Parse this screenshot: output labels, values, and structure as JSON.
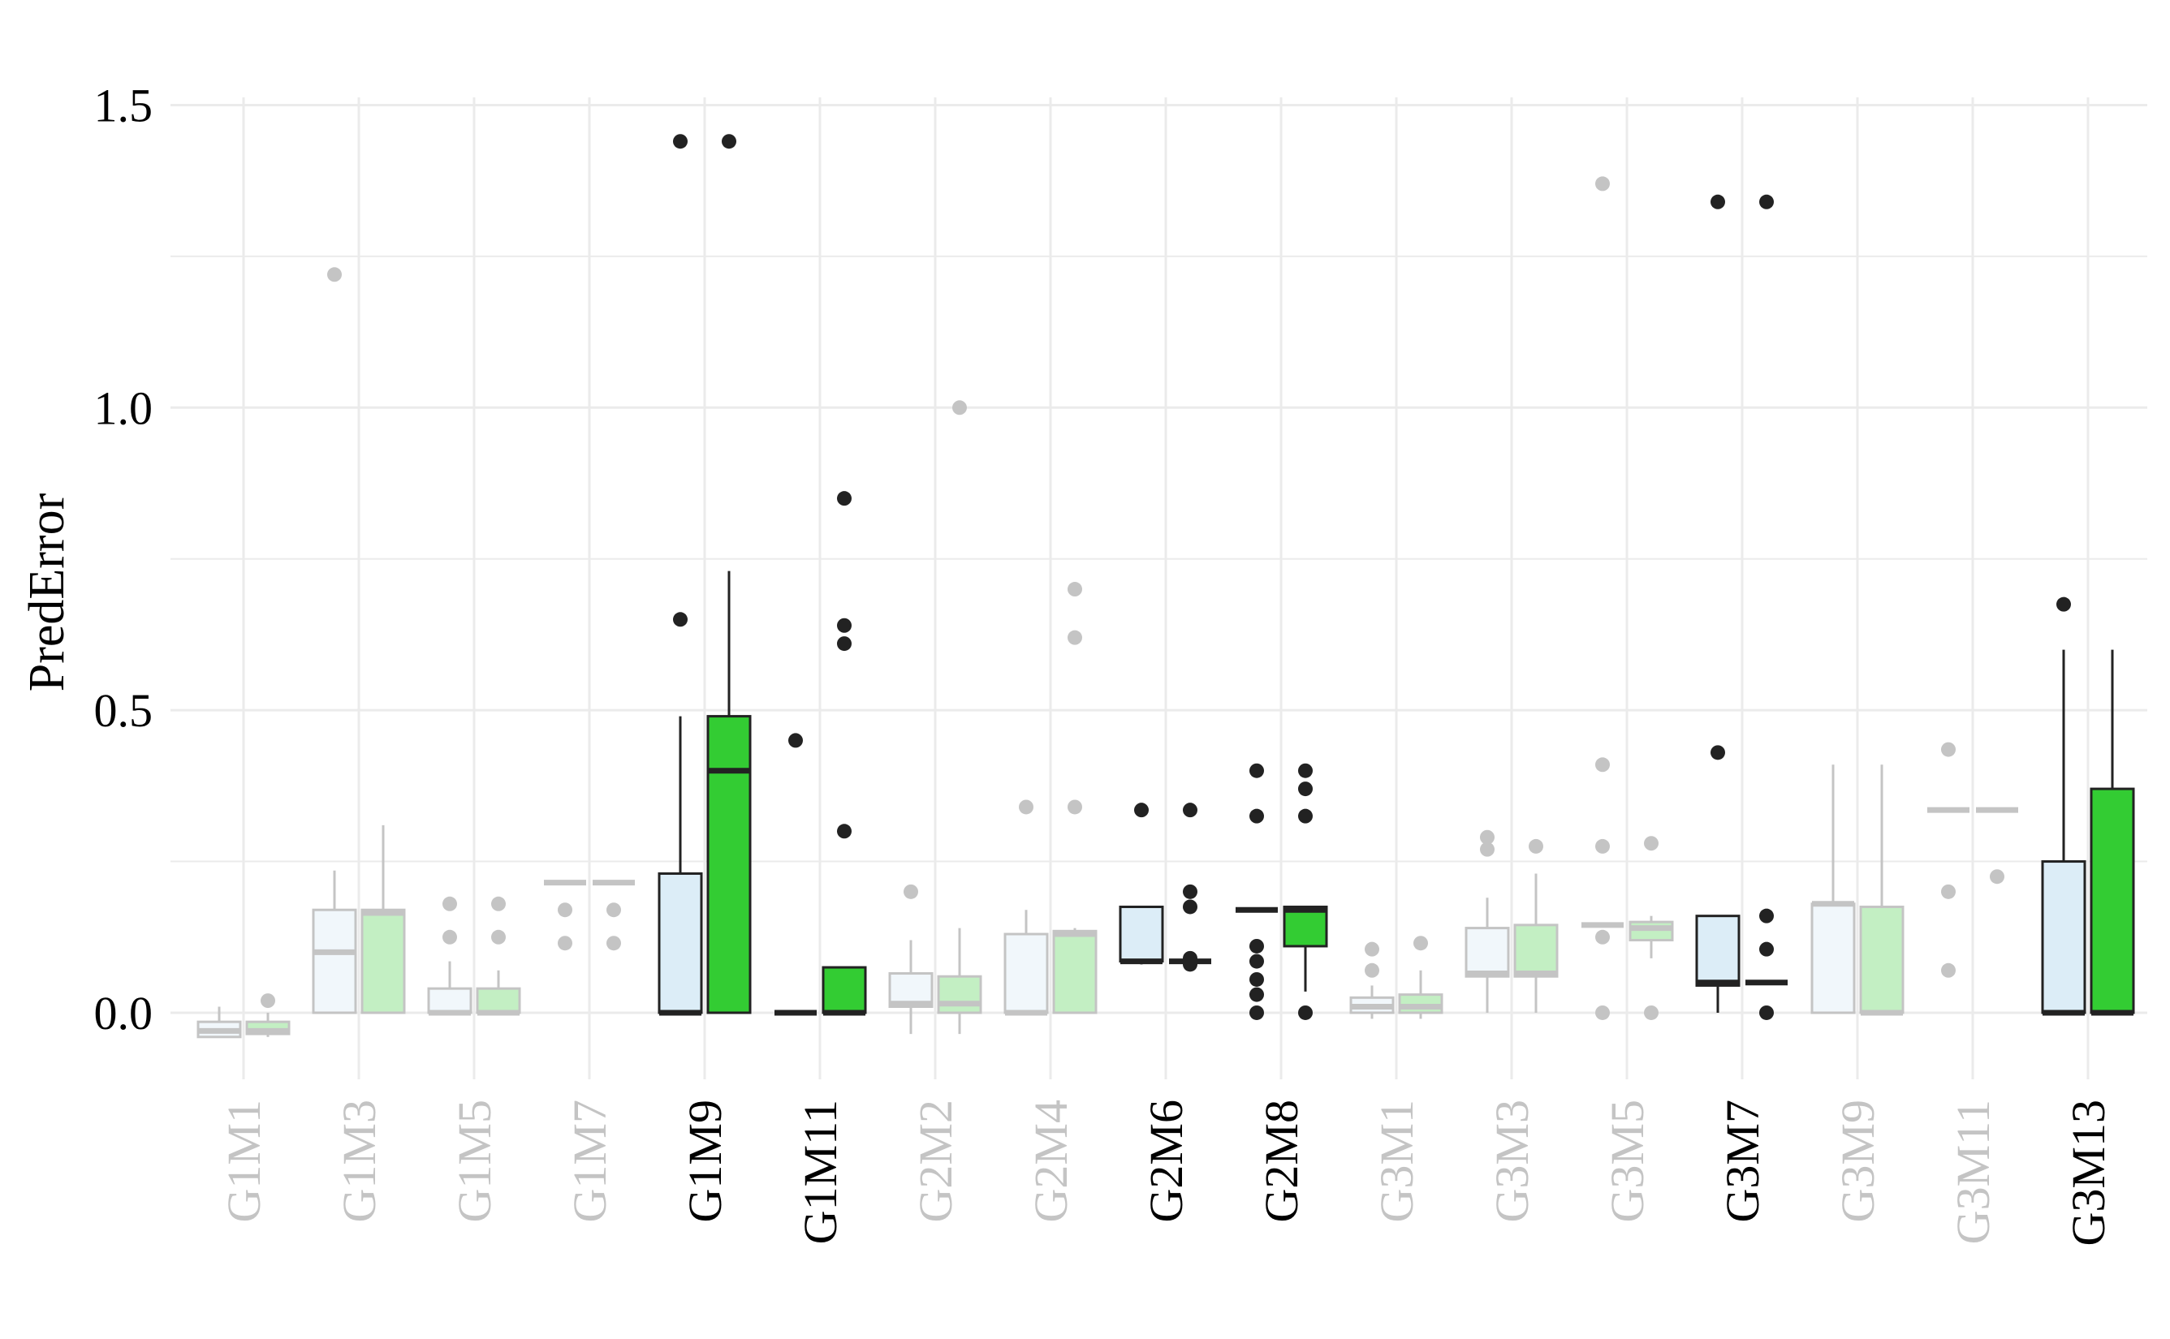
{
  "chart_data": {
    "type": "box",
    "title": "",
    "xlabel": "",
    "ylabel": "PredError",
    "ylim": [
      -0.11,
      1.62
    ],
    "yticks": [
      0.0,
      0.5,
      1.0,
      1.5
    ],
    "ytick_labels": [
      "0.0",
      "0.5",
      "1.0",
      "1.5"
    ],
    "grid": true,
    "legend": "none",
    "colors": {
      "blue_box": "#dcedf7",
      "green_box": "#33cc33",
      "blue_box_faded": "#f1f7fb",
      "green_box_faded": "#c3efc3",
      "dark": "#222222",
      "faded": "#c4c4c4",
      "grid": "#ebebeb"
    },
    "categories": [
      {
        "label": "G1M1",
        "highlight": false,
        "boxes": [
          {
            "series": "blue",
            "whislo": -0.04,
            "q1": -0.04,
            "med": -0.03,
            "q3": -0.015,
            "whishi": 0.01,
            "fliers": []
          },
          {
            "series": "green",
            "whislo": -0.04,
            "q1": -0.035,
            "med": -0.03,
            "q3": -0.015,
            "whishi": 0.0,
            "fliers": [
              0.02
            ]
          }
        ]
      },
      {
        "label": "G1M3",
        "highlight": false,
        "boxes": [
          {
            "series": "blue",
            "whislo": 0.0,
            "q1": 0.0,
            "med": 0.1,
            "q3": 0.17,
            "whishi": 0.235,
            "fliers": [
              1.22
            ]
          },
          {
            "series": "green",
            "whislo": 0.0,
            "q1": 0.0,
            "med": 0.165,
            "q3": 0.17,
            "whishi": 0.31,
            "fliers": []
          }
        ]
      },
      {
        "label": "G1M5",
        "highlight": false,
        "boxes": [
          {
            "series": "blue",
            "whislo": 0.0,
            "q1": 0.0,
            "med": 0.0,
            "q3": 0.04,
            "whishi": 0.085,
            "fliers": [
              0.125,
              0.18
            ]
          },
          {
            "series": "green",
            "whislo": 0.0,
            "q1": 0.0,
            "med": 0.0,
            "q3": 0.04,
            "whishi": 0.07,
            "fliers": [
              0.125,
              0.18
            ]
          }
        ]
      },
      {
        "label": "G1M7",
        "highlight": false,
        "boxes": [
          {
            "series": "blue",
            "whislo": 0.215,
            "q1": 0.215,
            "med": 0.215,
            "q3": 0.215,
            "whishi": 0.215,
            "fliers": [
              0.115,
              0.17
            ]
          },
          {
            "series": "green",
            "whislo": 0.215,
            "q1": 0.215,
            "med": 0.215,
            "q3": 0.215,
            "whishi": 0.215,
            "fliers": [
              0.115,
              0.17
            ]
          }
        ]
      },
      {
        "label": "G1M9",
        "highlight": true,
        "boxes": [
          {
            "series": "blue",
            "whislo": 0.0,
            "q1": 0.0,
            "med": 0.0,
            "q3": 0.23,
            "whishi": 0.49,
            "fliers": [
              0.65,
              1.44
            ]
          },
          {
            "series": "green",
            "whislo": 0.0,
            "q1": 0.0,
            "med": 0.4,
            "q3": 0.49,
            "whishi": 0.73,
            "fliers": [
              1.44
            ]
          }
        ]
      },
      {
        "label": "G1M11",
        "highlight": true,
        "boxes": [
          {
            "series": "blue",
            "whislo": 0.0,
            "q1": 0.0,
            "med": 0.0,
            "q3": 0.0,
            "whishi": 0.0,
            "fliers": [
              0.45
            ]
          },
          {
            "series": "green",
            "whislo": 0.0,
            "q1": 0.0,
            "med": 0.0,
            "q3": 0.075,
            "whishi": 0.075,
            "fliers": [
              0.3,
              0.61,
              0.64,
              0.85
            ]
          }
        ]
      },
      {
        "label": "G2M2",
        "highlight": false,
        "boxes": [
          {
            "series": "blue",
            "whislo": -0.035,
            "q1": 0.01,
            "med": 0.015,
            "q3": 0.065,
            "whishi": 0.12,
            "fliers": [
              0.2
            ]
          },
          {
            "series": "green",
            "whislo": -0.035,
            "q1": 0.0,
            "med": 0.015,
            "q3": 0.06,
            "whishi": 0.14,
            "fliers": [
              1.0
            ]
          }
        ]
      },
      {
        "label": "G2M4",
        "highlight": false,
        "boxes": [
          {
            "series": "blue",
            "whislo": 0.0,
            "q1": 0.0,
            "med": 0.0,
            "q3": 0.13,
            "whishi": 0.17,
            "fliers": [
              0.34
            ]
          },
          {
            "series": "green",
            "whislo": 0.0,
            "q1": 0.0,
            "med": 0.13,
            "q3": 0.135,
            "whishi": 0.14,
            "fliers": [
              0.34,
              0.62,
              0.7
            ]
          }
        ]
      },
      {
        "label": "G2M6",
        "highlight": true,
        "boxes": [
          {
            "series": "blue",
            "whislo": 0.08,
            "q1": 0.085,
            "med": 0.085,
            "q3": 0.175,
            "whishi": 0.175,
            "fliers": [
              0.335
            ]
          },
          {
            "series": "green",
            "whislo": 0.085,
            "q1": 0.085,
            "med": 0.085,
            "q3": 0.085,
            "whishi": 0.085,
            "fliers": [
              0.08,
              0.09,
              0.175,
              0.2,
              0.335
            ]
          }
        ]
      },
      {
        "label": "G2M8",
        "highlight": true,
        "boxes": [
          {
            "series": "blue",
            "whislo": 0.17,
            "q1": 0.17,
            "med": 0.17,
            "q3": 0.17,
            "whishi": 0.17,
            "fliers": [
              0.0,
              0.03,
              0.055,
              0.085,
              0.11,
              0.325,
              0.4
            ]
          },
          {
            "series": "green",
            "whislo": 0.035,
            "q1": 0.11,
            "med": 0.17,
            "q3": 0.175,
            "whishi": 0.175,
            "fliers": [
              0.0,
              0.325,
              0.37,
              0.4
            ]
          }
        ]
      },
      {
        "label": "G3M1",
        "highlight": false,
        "boxes": [
          {
            "series": "blue",
            "whislo": -0.01,
            "q1": 0.0,
            "med": 0.01,
            "q3": 0.025,
            "whishi": 0.045,
            "fliers": [
              0.07,
              0.105
            ]
          },
          {
            "series": "green",
            "whislo": -0.01,
            "q1": 0.0,
            "med": 0.01,
            "q3": 0.03,
            "whishi": 0.07,
            "fliers": [
              0.115
            ]
          }
        ]
      },
      {
        "label": "G3M3",
        "highlight": false,
        "boxes": [
          {
            "series": "blue",
            "whislo": 0.0,
            "q1": 0.06,
            "med": 0.065,
            "q3": 0.14,
            "whishi": 0.19,
            "fliers": [
              0.27,
              0.29
            ]
          },
          {
            "series": "green",
            "whislo": 0.0,
            "q1": 0.06,
            "med": 0.065,
            "q3": 0.145,
            "whishi": 0.23,
            "fliers": [
              0.275
            ]
          }
        ]
      },
      {
        "label": "G3M5",
        "highlight": false,
        "boxes": [
          {
            "series": "blue",
            "whislo": 0.145,
            "q1": 0.145,
            "med": 0.145,
            "q3": 0.145,
            "whishi": 0.145,
            "fliers": [
              0.0,
              0.125,
              0.275,
              0.41,
              1.37
            ]
          },
          {
            "series": "green",
            "whislo": 0.09,
            "q1": 0.12,
            "med": 0.14,
            "q3": 0.15,
            "whishi": 0.16,
            "fliers": [
              0.0,
              0.28
            ]
          }
        ]
      },
      {
        "label": "G3M7",
        "highlight": true,
        "boxes": [
          {
            "series": "blue",
            "whislo": 0.0,
            "q1": 0.045,
            "med": 0.05,
            "q3": 0.16,
            "whishi": 0.16,
            "fliers": [
              0.43,
              1.34
            ]
          },
          {
            "series": "green",
            "whislo": 0.05,
            "q1": 0.05,
            "med": 0.05,
            "q3": 0.05,
            "whishi": 0.05,
            "fliers": [
              0.0,
              0.105,
              0.16,
              1.34
            ]
          }
        ]
      },
      {
        "label": "G3M9",
        "highlight": false,
        "boxes": [
          {
            "series": "blue",
            "whislo": 0.0,
            "q1": 0.0,
            "med": 0.18,
            "q3": 0.18,
            "whishi": 0.41,
            "fliers": []
          },
          {
            "series": "green",
            "whislo": 0.0,
            "q1": 0.0,
            "med": 0.0,
            "q3": 0.175,
            "whishi": 0.41,
            "fliers": []
          }
        ]
      },
      {
        "label": "G3M11",
        "highlight": false,
        "boxes": [
          {
            "series": "blue",
            "whislo": 0.335,
            "q1": 0.335,
            "med": 0.335,
            "q3": 0.335,
            "whishi": 0.335,
            "fliers": [
              0.07,
              0.2,
              0.435
            ]
          },
          {
            "series": "green",
            "whislo": 0.335,
            "q1": 0.335,
            "med": 0.335,
            "q3": 0.335,
            "whishi": 0.335,
            "fliers": [
              0.225
            ]
          }
        ]
      },
      {
        "label": "G3M13",
        "highlight": true,
        "boxes": [
          {
            "series": "blue",
            "whislo": 0.0,
            "q1": 0.0,
            "med": 0.0,
            "q3": 0.25,
            "whishi": 0.6,
            "fliers": [
              0.675
            ]
          },
          {
            "series": "green",
            "whislo": 0.0,
            "q1": 0.0,
            "med": 0.0,
            "q3": 0.37,
            "whishi": 0.6,
            "fliers": []
          }
        ]
      }
    ]
  }
}
